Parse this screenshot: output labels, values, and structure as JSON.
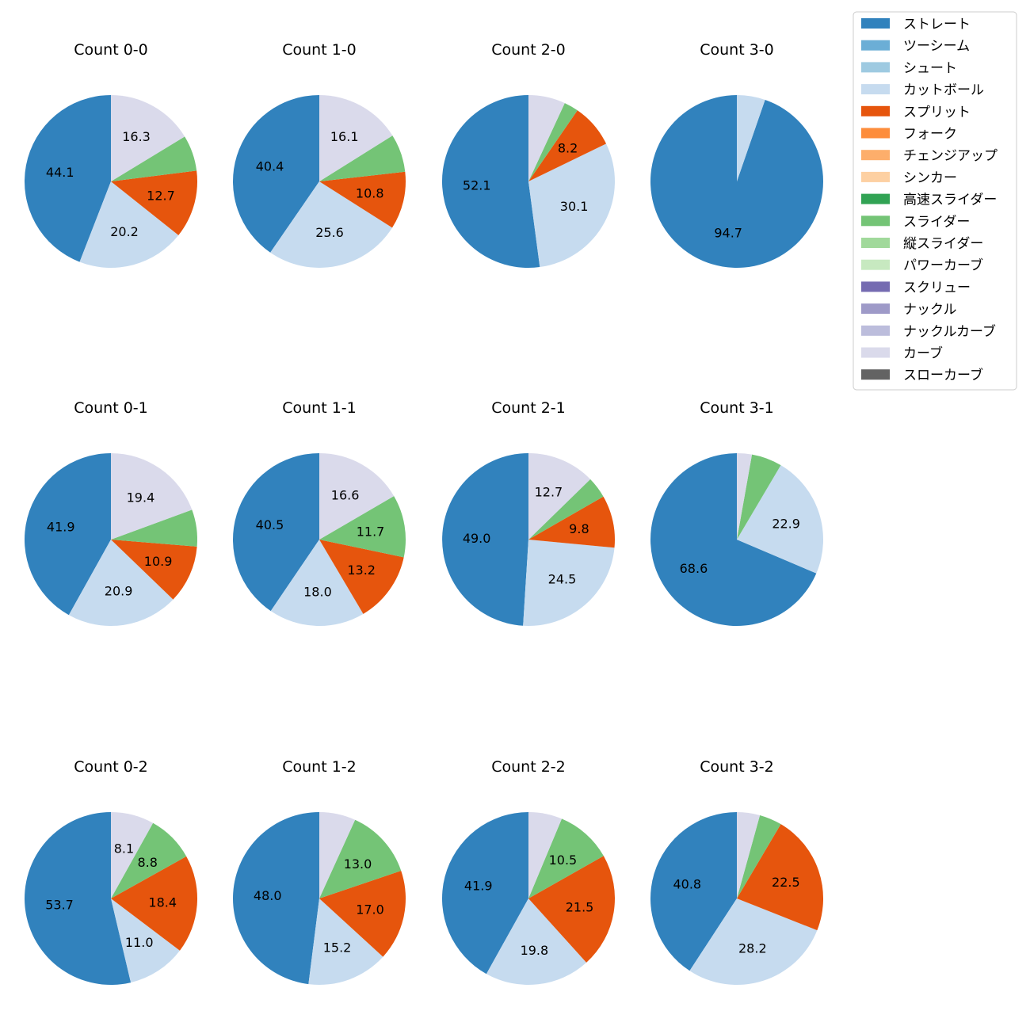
{
  "chart_data": {
    "type": "pie",
    "legend_placement": "top-right",
    "legend": [
      {
        "name": "ストレート",
        "color": "#3182bd"
      },
      {
        "name": "ツーシーム",
        "color": "#6baed6"
      },
      {
        "name": "シュート",
        "color": "#9ecae1"
      },
      {
        "name": "カットボール",
        "color": "#c6dbef"
      },
      {
        "name": "スプリット",
        "color": "#e6550d"
      },
      {
        "name": "フォーク",
        "color": "#fd8d3c"
      },
      {
        "name": "チェンジアップ",
        "color": "#fdae6b"
      },
      {
        "name": "シンカー",
        "color": "#fdd0a2"
      },
      {
        "name": "高速スライダー",
        "color": "#31a354"
      },
      {
        "name": "スライダー",
        "color": "#74c476"
      },
      {
        "name": "縦スライダー",
        "color": "#a1d99b"
      },
      {
        "name": "パワーカーブ",
        "color": "#c7e9c0"
      },
      {
        "name": "スクリュー",
        "color": "#756bb1"
      },
      {
        "name": "ナックル",
        "color": "#9e9ac8"
      },
      {
        "name": "ナックルカーブ",
        "color": "#bcbddc"
      },
      {
        "name": "カーブ",
        "color": "#dadaeb"
      },
      {
        "name": "スローカーブ",
        "color": "#636363"
      }
    ],
    "pies": [
      {
        "title": "Count 0-0",
        "slices": [
          {
            "pitch": "ストレート",
            "value": 44.1,
            "label": "44.1"
          },
          {
            "pitch": "カットボール",
            "value": 20.2,
            "label": "20.2"
          },
          {
            "pitch": "スプリット",
            "value": 12.7,
            "label": "12.7"
          },
          {
            "pitch": "スライダー",
            "value": 6.7,
            "label": ""
          },
          {
            "pitch": "カーブ",
            "value": 16.3,
            "label": "16.3"
          }
        ]
      },
      {
        "title": "Count 1-0",
        "slices": [
          {
            "pitch": "ストレート",
            "value": 40.4,
            "label": "40.4"
          },
          {
            "pitch": "カットボール",
            "value": 25.6,
            "label": "25.6"
          },
          {
            "pitch": "スプリット",
            "value": 10.8,
            "label": "10.8"
          },
          {
            "pitch": "スライダー",
            "value": 7.1,
            "label": ""
          },
          {
            "pitch": "カーブ",
            "value": 16.1,
            "label": "16.1"
          }
        ]
      },
      {
        "title": "Count 2-0",
        "slices": [
          {
            "pitch": "ストレート",
            "value": 52.1,
            "label": "52.1"
          },
          {
            "pitch": "カットボール",
            "value": 30.1,
            "label": "30.1"
          },
          {
            "pitch": "スプリット",
            "value": 8.2,
            "label": "8.2"
          },
          {
            "pitch": "スライダー",
            "value": 2.7,
            "label": ""
          },
          {
            "pitch": "カーブ",
            "value": 6.9,
            "label": ""
          }
        ]
      },
      {
        "title": "Count 3-0",
        "slices": [
          {
            "pitch": "ストレート",
            "value": 94.7,
            "label": "94.7"
          },
          {
            "pitch": "カットボール",
            "value": 5.3,
            "label": ""
          }
        ]
      },
      {
        "title": "Count 0-1",
        "slices": [
          {
            "pitch": "ストレート",
            "value": 41.9,
            "label": "41.9"
          },
          {
            "pitch": "カットボール",
            "value": 20.9,
            "label": "20.9"
          },
          {
            "pitch": "スプリット",
            "value": 10.9,
            "label": "10.9"
          },
          {
            "pitch": "スライダー",
            "value": 6.9,
            "label": ""
          },
          {
            "pitch": "カーブ",
            "value": 19.4,
            "label": "19.4"
          }
        ]
      },
      {
        "title": "Count 1-1",
        "slices": [
          {
            "pitch": "ストレート",
            "value": 40.5,
            "label": "40.5"
          },
          {
            "pitch": "カットボール",
            "value": 18.0,
            "label": "18.0"
          },
          {
            "pitch": "スプリット",
            "value": 13.2,
            "label": "13.2"
          },
          {
            "pitch": "スライダー",
            "value": 11.7,
            "label": "11.7"
          },
          {
            "pitch": "カーブ",
            "value": 16.6,
            "label": "16.6"
          }
        ]
      },
      {
        "title": "Count 2-1",
        "slices": [
          {
            "pitch": "ストレート",
            "value": 49.0,
            "label": "49.0"
          },
          {
            "pitch": "カットボール",
            "value": 24.5,
            "label": "24.5"
          },
          {
            "pitch": "スプリット",
            "value": 9.8,
            "label": "9.8"
          },
          {
            "pitch": "スライダー",
            "value": 4.0,
            "label": ""
          },
          {
            "pitch": "カーブ",
            "value": 12.7,
            "label": "12.7"
          }
        ]
      },
      {
        "title": "Count 3-1",
        "slices": [
          {
            "pitch": "ストレート",
            "value": 68.6,
            "label": "68.6"
          },
          {
            "pitch": "カットボール",
            "value": 22.9,
            "label": "22.9"
          },
          {
            "pitch": "スライダー",
            "value": 5.7,
            "label": ""
          },
          {
            "pitch": "カーブ",
            "value": 2.8,
            "label": ""
          }
        ]
      },
      {
        "title": "Count 0-2",
        "slices": [
          {
            "pitch": "ストレート",
            "value": 53.7,
            "label": "53.7"
          },
          {
            "pitch": "カットボール",
            "value": 11.0,
            "label": "11.0"
          },
          {
            "pitch": "スプリット",
            "value": 18.4,
            "label": "18.4"
          },
          {
            "pitch": "スライダー",
            "value": 8.8,
            "label": "8.8"
          },
          {
            "pitch": "カーブ",
            "value": 8.1,
            "label": "8.1"
          }
        ]
      },
      {
        "title": "Count 1-2",
        "slices": [
          {
            "pitch": "ストレート",
            "value": 48.0,
            "label": "48.0"
          },
          {
            "pitch": "カットボール",
            "value": 15.2,
            "label": "15.2"
          },
          {
            "pitch": "スプリット",
            "value": 17.0,
            "label": "17.0"
          },
          {
            "pitch": "スライダー",
            "value": 13.0,
            "label": "13.0"
          },
          {
            "pitch": "カーブ",
            "value": 6.8,
            "label": ""
          }
        ]
      },
      {
        "title": "Count 2-2",
        "slices": [
          {
            "pitch": "ストレート",
            "value": 41.9,
            "label": "41.9"
          },
          {
            "pitch": "カットボール",
            "value": 19.8,
            "label": "19.8"
          },
          {
            "pitch": "スプリット",
            "value": 21.5,
            "label": "21.5"
          },
          {
            "pitch": "スライダー",
            "value": 10.5,
            "label": "10.5"
          },
          {
            "pitch": "カーブ",
            "value": 6.3,
            "label": ""
          }
        ]
      },
      {
        "title": "Count 3-2",
        "slices": [
          {
            "pitch": "ストレート",
            "value": 40.8,
            "label": "40.8"
          },
          {
            "pitch": "カットボール",
            "value": 28.2,
            "label": "28.2"
          },
          {
            "pitch": "スプリット",
            "value": 22.5,
            "label": "22.5"
          },
          {
            "pitch": "スライダー",
            "value": 4.2,
            "label": ""
          },
          {
            "pitch": "カーブ",
            "value": 4.3,
            "label": ""
          }
        ]
      }
    ]
  }
}
